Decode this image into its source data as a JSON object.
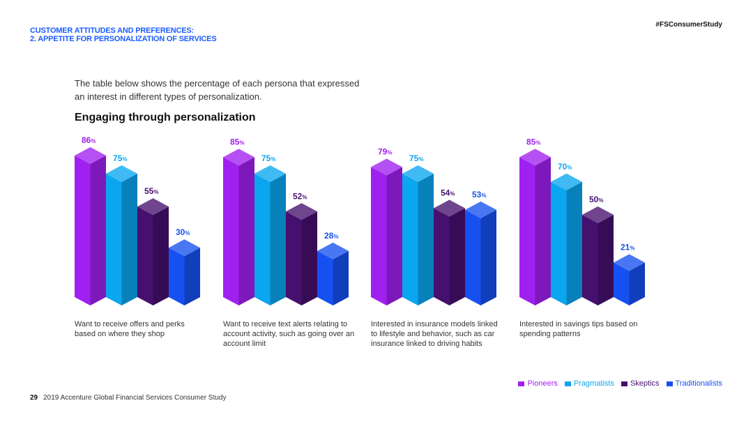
{
  "header": {
    "title_line1": "CUSTOMER ATTITUDES AND PREFERENCES:",
    "title_line2": "2. APPETITE FOR PERSONALIZATION OF SERVICES",
    "hashtag": "#FSConsumerStudy"
  },
  "intro_text": "The table below shows the percentage of each persona that expressed an interest in different types of personalization.",
  "footer": {
    "page_number": "29",
    "text": "2019 Accenture Global Financial Services Consumer Study"
  },
  "chart_data": {
    "type": "bar",
    "title": "Engaging through personalization",
    "unit": "%",
    "ylim": [
      0,
      100
    ],
    "categories": [
      "Want to receive offers and perks based on where they shop",
      "Want to receive text alerts relating to account activity, such as going over an account limit",
      "Interested in insurance models linked to lifestyle and behavior, such as car insurance linked to driving habits",
      "Interested in savings tips based on spending patterns"
    ],
    "series": [
      {
        "name": "Pioneers",
        "values": [
          86,
          85,
          79,
          85
        ],
        "color": "#a020f0"
      },
      {
        "name": "Pragmatists",
        "values": [
          75,
          75,
          75,
          70
        ],
        "color": "#0aa6f0"
      },
      {
        "name": "Skeptics",
        "values": [
          55,
          52,
          54,
          50
        ],
        "color": "#46106e"
      },
      {
        "name": "Traditionalists",
        "values": [
          30,
          28,
          53,
          21
        ],
        "color": "#1650f0"
      }
    ],
    "legend": "bottom-right"
  }
}
